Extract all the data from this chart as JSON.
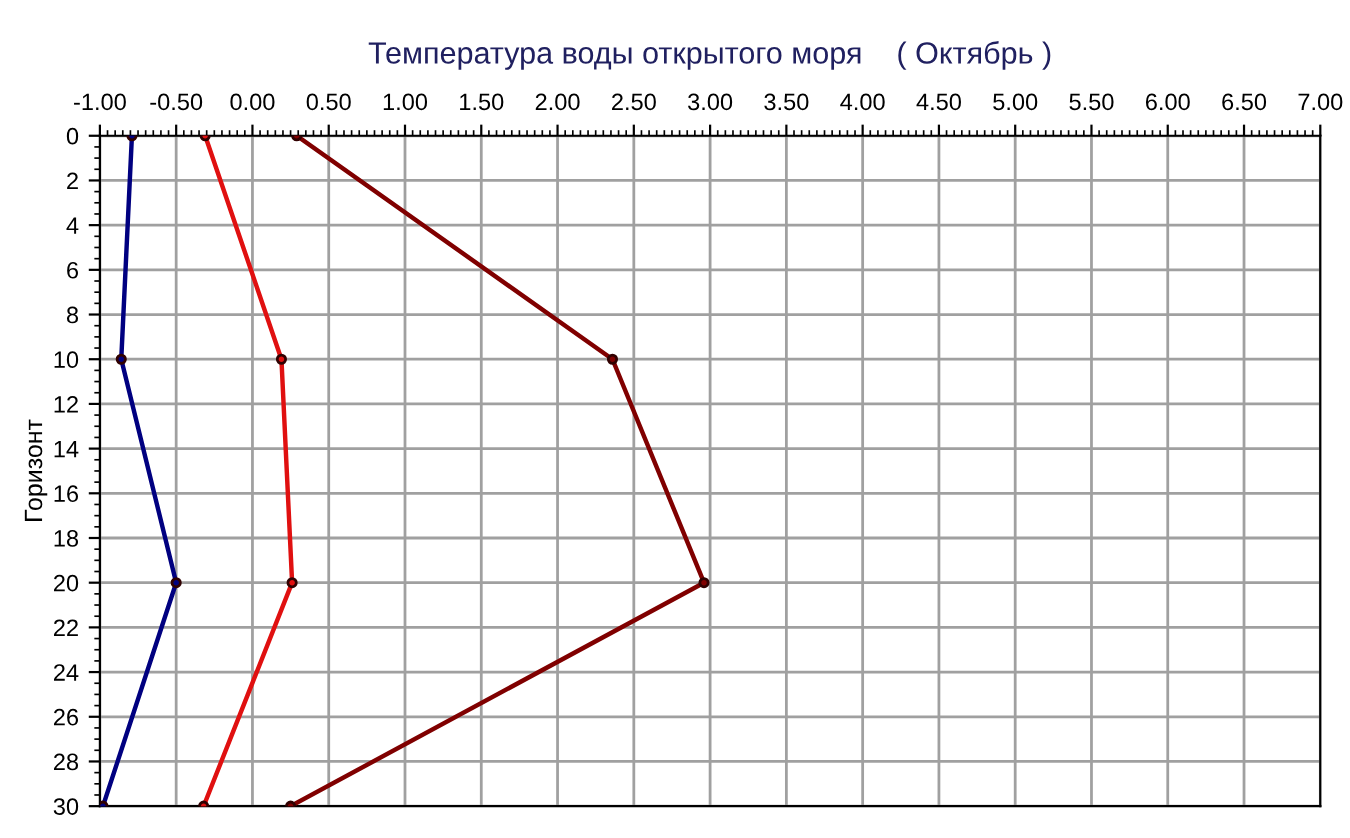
{
  "chart_data": {
    "type": "line",
    "title": "Температура воды открытого моря    ( Октябрь )",
    "ylabel": "Горизонт",
    "series": [
      {
        "color": "#000080",
        "x": [
          -0.79,
          -0.86,
          -0.5,
          -0.98
        ],
        "values": [
          0,
          10,
          20,
          30
        ]
      },
      {
        "color": "#e01010",
        "x": [
          -0.31,
          0.19,
          0.26,
          -0.32
        ],
        "values": [
          0,
          10,
          20,
          30
        ]
      },
      {
        "color": "#800000",
        "x": [
          0.29,
          2.36,
          2.96,
          0.25
        ],
        "values": [
          0,
          10,
          20,
          30
        ]
      }
    ],
    "xlim": [
      -1.0,
      7.0
    ],
    "xticks": [
      {
        "value": -1.0,
        "label": "-1.00"
      },
      {
        "value": -0.5,
        "label": "-0.50"
      },
      {
        "value": 0.0,
        "label": "0.00"
      },
      {
        "value": 0.5,
        "label": "0.50"
      },
      {
        "value": 1.0,
        "label": "1.00"
      },
      {
        "value": 1.5,
        "label": "1.50"
      },
      {
        "value": 2.0,
        "label": "2.00"
      },
      {
        "value": 2.5,
        "label": "2.50"
      },
      {
        "value": 3.0,
        "label": "3.00"
      },
      {
        "value": 3.5,
        "label": "3.50"
      },
      {
        "value": 4.0,
        "label": "4.00"
      },
      {
        "value": 4.5,
        "label": "4.50"
      },
      {
        "value": 5.0,
        "label": "5.00"
      },
      {
        "value": 5.5,
        "label": "5.50"
      },
      {
        "value": 6.0,
        "label": "6.00"
      },
      {
        "value": 6.5,
        "label": "6.50"
      },
      {
        "value": 7.0,
        "label": "7.00"
      }
    ],
    "ylim": [
      30,
      0
    ],
    "yticks": [
      0,
      2,
      4,
      6,
      8,
      10,
      12,
      14,
      16,
      18,
      20,
      22,
      24,
      26,
      28,
      30
    ],
    "grid": true,
    "marker": "circle",
    "line_style": "solid"
  }
}
